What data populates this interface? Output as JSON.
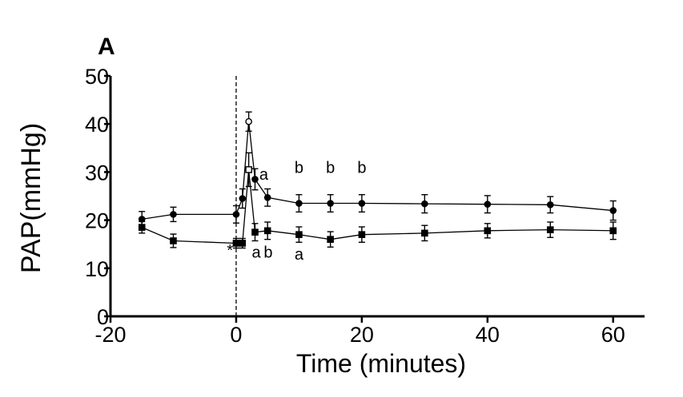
{
  "chart_data": {
    "type": "line",
    "panel_label": "A",
    "xlabel": "Time (minutes)",
    "ylabel": "PAP(mmHg)",
    "xlim": [
      -20,
      65
    ],
    "ylim": [
      0,
      50
    ],
    "x_ticks": [
      "-20",
      "0",
      "20",
      "40",
      "60"
    ],
    "y_ticks": [
      "0",
      "10",
      "20",
      "30",
      "40",
      "50"
    ],
    "reference_line_x": 0,
    "series": [
      {
        "marker": "circle",
        "points": [
          {
            "x": -15,
            "y": 20.2,
            "err": 1.6
          },
          {
            "x": -10,
            "y": 21.2,
            "err": 1.5
          },
          {
            "x": 0,
            "y": 21.2,
            "err": 1.8
          },
          {
            "x": 1,
            "y": 24.5,
            "err": 2.0
          },
          {
            "x": 2,
            "y": 40.5,
            "err": 2.0
          },
          {
            "x": 3,
            "y": 28.5,
            "err": 2.2
          },
          {
            "x": 5,
            "y": 24.7,
            "err": 1.8
          },
          {
            "x": 10,
            "y": 23.5,
            "err": 1.8
          },
          {
            "x": 15,
            "y": 23.5,
            "err": 1.8
          },
          {
            "x": 20,
            "y": 23.5,
            "err": 1.8
          },
          {
            "x": 30,
            "y": 23.4,
            "err": 1.9
          },
          {
            "x": 40,
            "y": 23.3,
            "err": 1.8
          },
          {
            "x": 50,
            "y": 23.2,
            "err": 1.7
          },
          {
            "x": 60,
            "y": 22.0,
            "err": 2.0
          }
        ]
      },
      {
        "marker": "square",
        "points": [
          {
            "x": -15,
            "y": 18.5,
            "err": 1.2
          },
          {
            "x": -10,
            "y": 15.7,
            "err": 1.4
          },
          {
            "x": 0,
            "y": 15.2,
            "err": 1.0
          },
          {
            "x": 1,
            "y": 15.2,
            "err": 1.0
          },
          {
            "x": 2,
            "y": 30.5,
            "err": 3.5
          },
          {
            "x": 3,
            "y": 17.5,
            "err": 1.8
          },
          {
            "x": 5,
            "y": 17.8,
            "err": 1.8
          },
          {
            "x": 10,
            "y": 17.0,
            "err": 1.6
          },
          {
            "x": 15,
            "y": 16.0,
            "err": 1.6
          },
          {
            "x": 20,
            "y": 17.0,
            "err": 1.6
          },
          {
            "x": 30,
            "y": 17.3,
            "err": 1.6
          },
          {
            "x": 40,
            "y": 17.8,
            "err": 1.5
          },
          {
            "x": 50,
            "y": 18.0,
            "err": 1.6
          },
          {
            "x": 60,
            "y": 17.8,
            "err": 1.8
          }
        ]
      }
    ],
    "annotations": [
      {
        "text": "a",
        "x": 4.4,
        "y": 28.4
      },
      {
        "text": "b",
        "x": 10,
        "y": 29.8
      },
      {
        "text": "b",
        "x": 15,
        "y": 29.8
      },
      {
        "text": "b",
        "x": 20,
        "y": 29.8
      },
      {
        "text": "a",
        "x": 3.2,
        "y": 12.2
      },
      {
        "text": "b",
        "x": 5.1,
        "y": 12.2
      },
      {
        "text": "a",
        "x": 10,
        "y": 11.8
      },
      {
        "text": "*",
        "x": -1.0,
        "y": 12.6
      }
    ]
  }
}
